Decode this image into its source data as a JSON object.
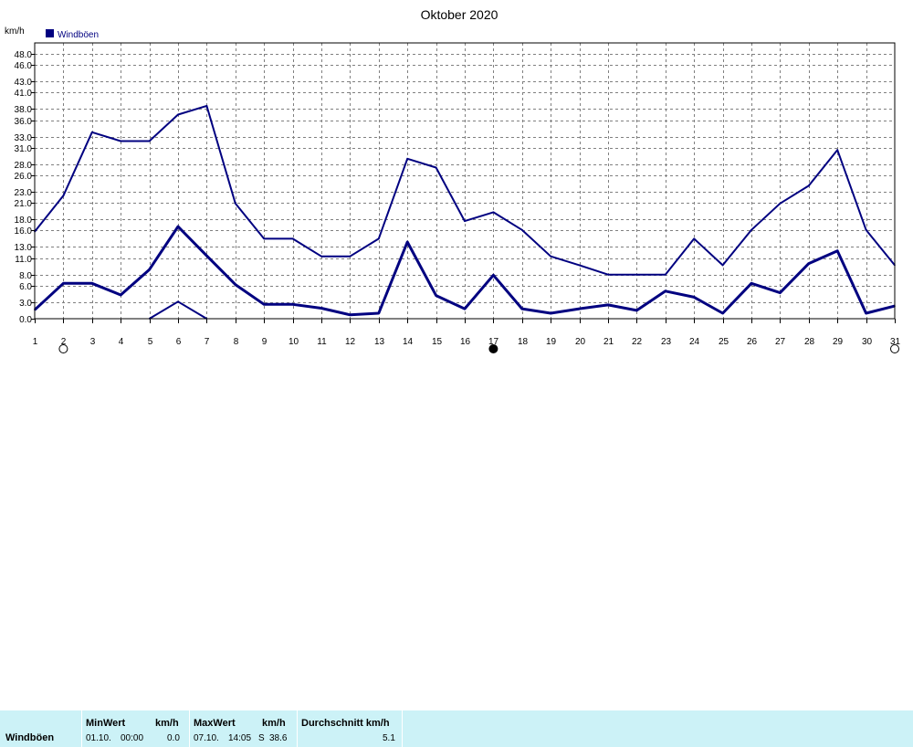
{
  "chart_data": {
    "type": "line",
    "title": "Oktober 2020",
    "ylabel": "km/h",
    "legend": {
      "label": "Windböen",
      "color": "#000080",
      "placement": "top-left"
    },
    "ylim": [
      0,
      50
    ],
    "yticks": [
      0,
      3,
      6,
      8,
      11,
      13,
      16,
      18,
      21,
      23,
      26,
      28,
      31,
      33,
      36,
      38,
      41,
      43,
      46,
      48
    ],
    "ytick_labels": [
      "0.0",
      "3.0",
      "6.0",
      "8.0",
      "11.0",
      "13.0",
      "16.0",
      "18.0",
      "21.0",
      "23.0",
      "26.0",
      "28.0",
      "31.0",
      "33.0",
      "36.0",
      "38.0",
      "41.0",
      "43.0",
      "46.0",
      "48.0"
    ],
    "x": [
      1,
      2,
      3,
      4,
      5,
      6,
      7,
      8,
      9,
      10,
      11,
      12,
      13,
      14,
      15,
      16,
      17,
      18,
      19,
      20,
      21,
      22,
      23,
      24,
      25,
      26,
      27,
      28,
      29,
      30,
      31
    ],
    "xlim": [
      1,
      31
    ],
    "grid": true,
    "series": [
      {
        "role": "max",
        "color": "#000080",
        "x": [
          1,
          2,
          3,
          4,
          5,
          6,
          7,
          8,
          9,
          10,
          11,
          12,
          13,
          14,
          15,
          16,
          17,
          18,
          19,
          20,
          21,
          22,
          23,
          24,
          25,
          26,
          27,
          28,
          29,
          30,
          31
        ],
        "values": [
          15.8,
          22.3,
          33.8,
          32.2,
          32.2,
          37.0,
          38.6,
          20.9,
          14.5,
          14.5,
          11.3,
          11.3,
          14.5,
          29.0,
          27.4,
          17.7,
          19.3,
          16.1,
          11.3,
          9.7,
          8.0,
          8.0,
          8.0,
          14.5,
          9.7,
          16.1,
          20.9,
          24.1,
          30.6,
          16.1,
          9.7
        ]
      },
      {
        "role": "average",
        "color": "#000080",
        "x": [
          1,
          2,
          3,
          4,
          5,
          6,
          7,
          8,
          9,
          10,
          11,
          12,
          13,
          14,
          15,
          16,
          17,
          18,
          19,
          20,
          21,
          22,
          23,
          24,
          25,
          26,
          27,
          28,
          29,
          30,
          31
        ],
        "values": [
          1.6,
          6.4,
          6.4,
          4.3,
          8.9,
          16.7,
          11.4,
          6.2,
          2.6,
          2.6,
          1.9,
          0.7,
          1.0,
          13.9,
          4.2,
          1.8,
          7.9,
          1.8,
          1.0,
          1.8,
          2.5,
          1.5,
          5.0,
          3.9,
          1.0,
          6.4,
          4.7,
          10.0,
          12.3,
          1.0,
          2.3
        ]
      },
      {
        "role": "min",
        "color": "#000080",
        "x": [
          5,
          6,
          7
        ],
        "values": [
          0.0,
          3.1,
          0.0
        ]
      }
    ]
  },
  "markers": [
    {
      "day": "2",
      "icon": "open-circle-icon"
    },
    {
      "day": "17",
      "icon": "filled-circle-icon"
    },
    {
      "day": "31",
      "icon": "open-circle-icon"
    }
  ],
  "stats": {
    "label": "Windböen",
    "min_header": "MinWert",
    "min_unit": "km/h",
    "min_date": "01.10.",
    "min_time": "00:00",
    "min_value": "0.0",
    "max_header": "MaxWert",
    "max_unit": "km/h",
    "max_date": "07.10.",
    "max_time": "14:05",
    "max_dir": "S",
    "max_value": "38.6",
    "avg_header": "Durchschnitt km/h",
    "avg_value": "5.1"
  }
}
